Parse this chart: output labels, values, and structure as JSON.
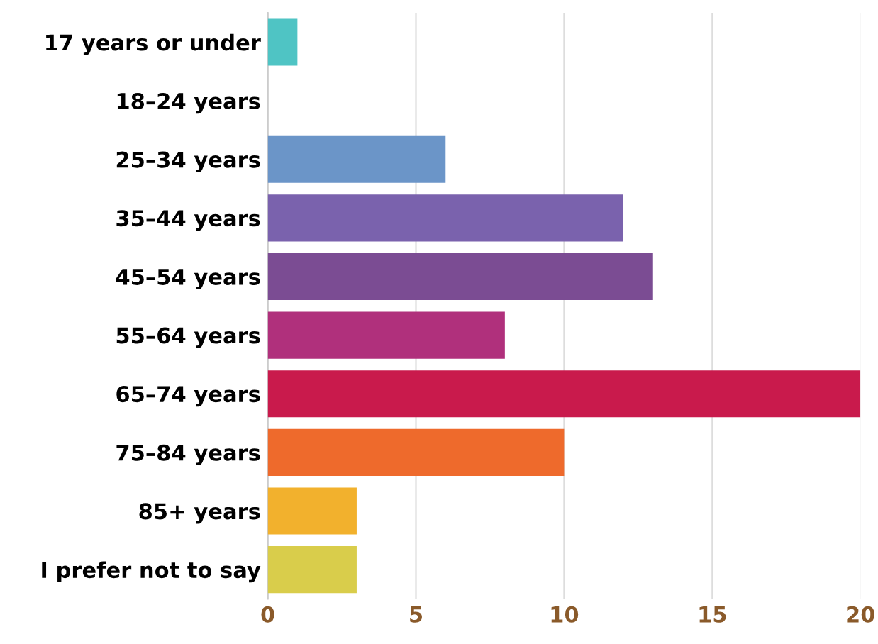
{
  "chart_data": {
    "type": "bar",
    "orientation": "horizontal",
    "categories": [
      "17 years or under",
      "18–24 years",
      "25–34 years",
      "35–44 years",
      "45–54 years",
      "55–64 years",
      "65–74 years",
      "75–84 years",
      "85+ years",
      "I prefer not to say"
    ],
    "values": [
      1,
      0,
      6,
      12,
      13,
      8,
      20,
      10,
      3,
      3
    ],
    "colors": [
      "#4fc4c4",
      "#5fc8c8",
      "#6b95c8",
      "#7a62ad",
      "#7b4c93",
      "#b0307c",
      "#c91a4c",
      "#ee6a2c",
      "#f2b12d",
      "#d9cd4b"
    ],
    "xlim": [
      0,
      20
    ],
    "xticks": [
      0,
      5,
      10,
      15,
      20
    ],
    "grid": "x"
  }
}
